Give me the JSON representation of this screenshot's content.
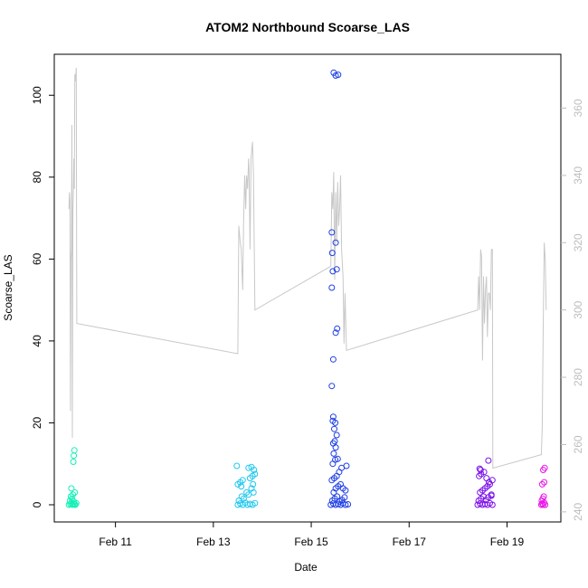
{
  "chart_data": {
    "type": "scatter",
    "title": "ATOM2 Northbound Scoarse_LAS",
    "xlabel": "Date",
    "ylabel": "Scoarse_LAS",
    "x_ticks": [
      "Feb 11",
      "Feb 13",
      "Feb 15",
      "Feb 17",
      "Feb 19"
    ],
    "x_ticks_day": [
      11,
      13,
      15,
      17,
      19
    ],
    "xlim_day": [
      9.75,
      20.1
    ],
    "ylim": [
      -4.2,
      110
    ],
    "y_ticks": [
      0,
      20,
      40,
      60,
      80,
      100
    ],
    "y2lim": [
      237,
      376
    ],
    "y2_ticks": [
      240,
      260,
      280,
      300,
      320,
      340,
      360
    ],
    "y2_color": "#bdbdbd",
    "grid": false,
    "series": [
      {
        "color": "#14f0b6",
        "points": [
          [
            10.05,
            0
          ],
          [
            10.08,
            0.2
          ],
          [
            10.1,
            0.5
          ],
          [
            10.12,
            0
          ],
          [
            10.14,
            0.3
          ],
          [
            10.16,
            0.1
          ],
          [
            10.18,
            0
          ],
          [
            10.2,
            0.4
          ],
          [
            10.07,
            1
          ],
          [
            10.11,
            1.5
          ],
          [
            10.15,
            0.8
          ],
          [
            10.09,
            2
          ],
          [
            10.13,
            2.5
          ],
          [
            10.17,
            3
          ],
          [
            10.1,
            4
          ],
          [
            10.15,
            12
          ],
          [
            10.16,
            13.3
          ],
          [
            10.14,
            10.5
          ]
        ]
      },
      {
        "color": "#1ec8ee",
        "points": [
          [
            13.5,
            0
          ],
          [
            13.55,
            0.3
          ],
          [
            13.6,
            0
          ],
          [
            13.65,
            0.5
          ],
          [
            13.7,
            0
          ],
          [
            13.75,
            0.2
          ],
          [
            13.8,
            0
          ],
          [
            13.85,
            0.4
          ],
          [
            13.52,
            1
          ],
          [
            13.58,
            2
          ],
          [
            13.62,
            1.5
          ],
          [
            13.68,
            3
          ],
          [
            13.72,
            2.5
          ],
          [
            13.78,
            4
          ],
          [
            13.82,
            3
          ],
          [
            13.5,
            5
          ],
          [
            13.55,
            5.5
          ],
          [
            13.6,
            6
          ],
          [
            13.75,
            6.5
          ],
          [
            13.8,
            7
          ],
          [
            13.85,
            7.5
          ],
          [
            13.72,
            9
          ],
          [
            13.78,
            9.2
          ],
          [
            13.83,
            8.5
          ],
          [
            13.48,
            9.5
          ],
          [
            13.57,
            4.5
          ],
          [
            13.81,
            5
          ]
        ]
      },
      {
        "color": "#1e3fe5",
        "points": [
          [
            15.4,
            0
          ],
          [
            15.45,
            0.3
          ],
          [
            15.5,
            0
          ],
          [
            15.55,
            0.2
          ],
          [
            15.6,
            0
          ],
          [
            15.65,
            0.4
          ],
          [
            15.7,
            0
          ],
          [
            15.75,
            0.1
          ],
          [
            15.43,
            1
          ],
          [
            15.48,
            1.5
          ],
          [
            15.53,
            2
          ],
          [
            15.58,
            0.8
          ],
          [
            15.63,
            1.2
          ],
          [
            15.68,
            1.8
          ],
          [
            15.46,
            3
          ],
          [
            15.5,
            4
          ],
          [
            15.55,
            4.5
          ],
          [
            15.6,
            5
          ],
          [
            15.65,
            4
          ],
          [
            15.7,
            3.5
          ],
          [
            15.42,
            6
          ],
          [
            15.47,
            6.5
          ],
          [
            15.52,
            7
          ],
          [
            15.57,
            8
          ],
          [
            15.62,
            9
          ],
          [
            15.72,
            9.5
          ],
          [
            15.44,
            10
          ],
          [
            15.49,
            11
          ],
          [
            15.54,
            11.2
          ],
          [
            15.46,
            12.5
          ],
          [
            15.5,
            14
          ],
          [
            15.45,
            15
          ],
          [
            15.48,
            15.5
          ],
          [
            15.52,
            17
          ],
          [
            15.47,
            18.5
          ],
          [
            15.49,
            20
          ],
          [
            15.44,
            20.5
          ],
          [
            15.45,
            21.5
          ],
          [
            15.42,
            29
          ],
          [
            15.45,
            35.5
          ],
          [
            15.5,
            42
          ],
          [
            15.53,
            43
          ],
          [
            15.42,
            53
          ],
          [
            15.44,
            57
          ],
          [
            15.52,
            57.5
          ],
          [
            15.43,
            61.5
          ],
          [
            15.5,
            64
          ],
          [
            15.42,
            66.5
          ],
          [
            15.46,
            105.5
          ],
          [
            15.5,
            104.8
          ],
          [
            15.55,
            105
          ]
        ]
      },
      {
        "color": "#7a10e8",
        "points": [
          [
            18.4,
            0
          ],
          [
            18.45,
            0.3
          ],
          [
            18.5,
            0
          ],
          [
            18.55,
            0.2
          ],
          [
            18.6,
            0
          ],
          [
            18.65,
            0.4
          ],
          [
            18.7,
            0
          ],
          [
            18.42,
            1
          ],
          [
            18.47,
            1.5
          ],
          [
            18.52,
            2
          ],
          [
            18.57,
            1.2
          ],
          [
            18.62,
            1.8
          ],
          [
            18.68,
            2.2
          ],
          [
            18.45,
            3
          ],
          [
            18.5,
            3.5
          ],
          [
            18.55,
            4
          ],
          [
            18.6,
            4.5
          ],
          [
            18.65,
            5
          ],
          [
            18.7,
            6
          ],
          [
            18.43,
            7
          ],
          [
            18.47,
            7.5
          ],
          [
            18.53,
            8
          ],
          [
            18.58,
            6.5
          ],
          [
            18.63,
            5.5
          ],
          [
            18.44,
            8.8
          ],
          [
            18.46,
            8.5
          ],
          [
            18.62,
            10.8
          ],
          [
            18.68,
            2.5
          ]
        ]
      },
      {
        "color": "#e817e8",
        "points": [
          [
            19.7,
            0
          ],
          [
            19.72,
            0.3
          ],
          [
            19.74,
            0
          ],
          [
            19.76,
            0.5
          ],
          [
            19.78,
            0
          ],
          [
            19.71,
            1
          ],
          [
            19.73,
            1.5
          ],
          [
            19.75,
            2
          ],
          [
            19.72,
            5
          ],
          [
            19.76,
            5.5
          ],
          [
            19.74,
            8.5
          ],
          [
            19.77,
            9
          ]
        ]
      }
    ],
    "secondary_line": {
      "color": "#c8c8c8",
      "points": [
        [
          10.05,
          330
        ],
        [
          10.06,
          335
        ],
        [
          10.07,
          333
        ],
        [
          10.08,
          270
        ],
        [
          10.09,
          315
        ],
        [
          10.1,
          318
        ],
        [
          10.11,
          355
        ],
        [
          10.12,
          262
        ],
        [
          10.13,
          330
        ],
        [
          10.14,
          335
        ],
        [
          10.15,
          345
        ],
        [
          10.16,
          336
        ],
        [
          10.17,
          370
        ],
        [
          10.18,
          368
        ],
        [
          10.2,
          372
        ],
        [
          10.21,
          296
        ],
        [
          13.5,
          287
        ],
        [
          13.52,
          325
        ],
        [
          13.55,
          320
        ],
        [
          13.57,
          318
        ],
        [
          13.6,
          306
        ],
        [
          13.62,
          328
        ],
        [
          13.64,
          340
        ],
        [
          13.66,
          330
        ],
        [
          13.68,
          340
        ],
        [
          13.7,
          336
        ],
        [
          13.72,
          345
        ],
        [
          13.73,
          342
        ],
        [
          13.75,
          318
        ],
        [
          13.77,
          345
        ],
        [
          13.8,
          350
        ],
        [
          13.82,
          340
        ],
        [
          13.85,
          300
        ],
        [
          15.4,
          313
        ],
        [
          15.42,
          335
        ],
        [
          15.44,
          330
        ],
        [
          15.46,
          341
        ],
        [
          15.48,
          309
        ],
        [
          15.5,
          335
        ],
        [
          15.52,
          320
        ],
        [
          15.54,
          338
        ],
        [
          15.56,
          325
        ],
        [
          15.58,
          330
        ],
        [
          15.6,
          340
        ],
        [
          15.62,
          318
        ],
        [
          15.65,
          310
        ],
        [
          15.67,
          290
        ],
        [
          15.69,
          305
        ],
        [
          15.72,
          288
        ],
        [
          18.4,
          300
        ],
        [
          18.42,
          310
        ],
        [
          18.44,
          300
        ],
        [
          18.46,
          318
        ],
        [
          18.48,
          316
        ],
        [
          18.5,
          285
        ],
        [
          18.52,
          310
        ],
        [
          18.54,
          296
        ],
        [
          18.56,
          306
        ],
        [
          18.58,
          310
        ],
        [
          18.6,
          292
        ],
        [
          18.62,
          305
        ],
        [
          18.64,
          305
        ],
        [
          18.66,
          300
        ],
        [
          18.68,
          318
        ],
        [
          18.7,
          318
        ],
        [
          18.71,
          253
        ],
        [
          19.7,
          257
        ],
        [
          19.72,
          265
        ],
        [
          19.74,
          295
        ],
        [
          19.76,
          320
        ],
        [
          19.78,
          315
        ],
        [
          19.8,
          300
        ]
      ]
    }
  }
}
